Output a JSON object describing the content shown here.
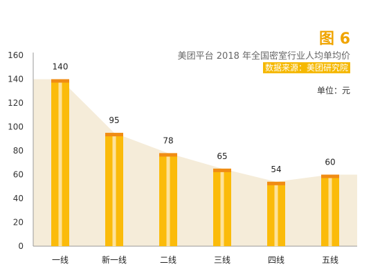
{
  "figure_label": "图 6",
  "chart_data": {
    "type": "bar",
    "title": "美团平台 2018 年全国密室行业人均单均价",
    "source": "数据来源：美团研究院",
    "unit": "单位：元",
    "categories": [
      "一线",
      "新一线",
      "二线",
      "三线",
      "四线",
      "五线"
    ],
    "values": [
      140,
      95,
      78,
      65,
      54,
      60
    ],
    "ylim": [
      0,
      160
    ],
    "yticks": [
      0,
      20,
      40,
      60,
      80,
      100,
      120,
      140,
      160
    ],
    "grid": false,
    "colors": {
      "bar": "#fbbb0a",
      "bar_cap": "#f08c14",
      "bar_stripe": "#fde29a",
      "area": "#f5ecd9"
    }
  }
}
